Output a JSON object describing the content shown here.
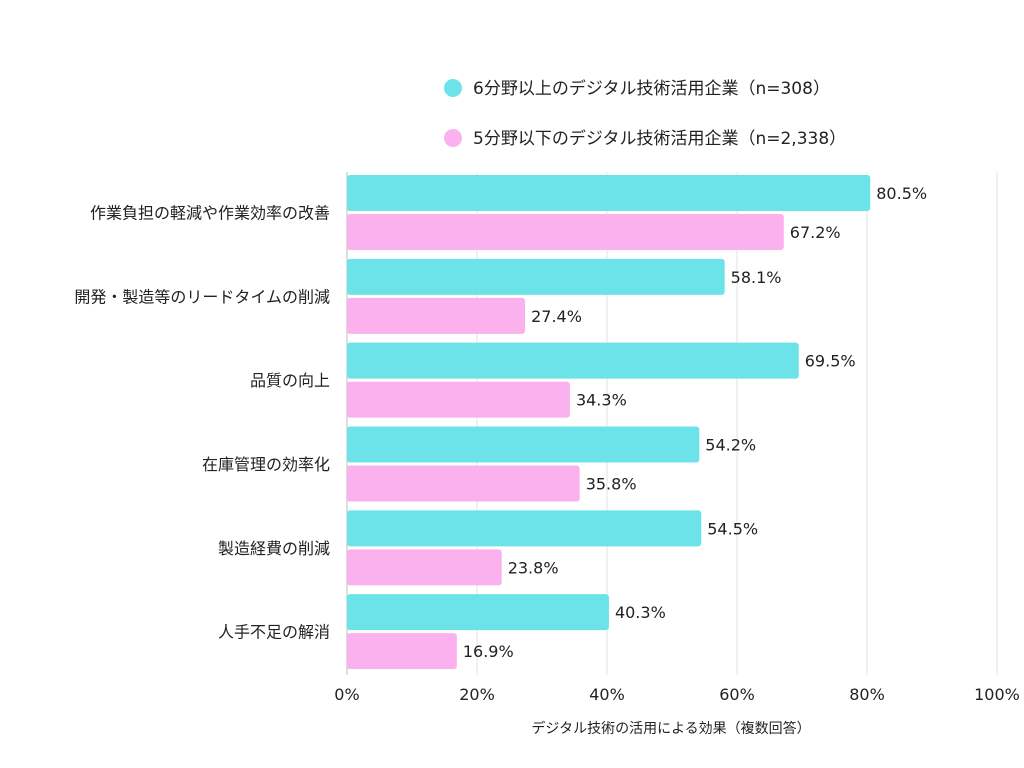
{
  "chart_data": {
    "type": "bar",
    "orientation": "horizontal",
    "categories": [
      "作業負担の軽減や作業効率の改善",
      "開発・製造等のリードタイムの削減",
      "品質の向上",
      "在庫管理の効率化",
      "製造経費の削減",
      "人手不足の解消"
    ],
    "series": [
      {
        "name": "6分野以上のデジタル技術活用企業（n=308）",
        "color": "#6ce3e8",
        "values": [
          80.5,
          58.1,
          69.5,
          54.2,
          54.5,
          40.3
        ],
        "labels": [
          "80.5%",
          "58.1%",
          "69.5%",
          "54.2%",
          "54.5%",
          "40.3%"
        ]
      },
      {
        "name": "5分野以下のデジタル技術活用企業（n=2,338）",
        "color": "#fcb1ef",
        "values": [
          67.2,
          27.4,
          34.3,
          35.8,
          23.8,
          16.9
        ],
        "labels": [
          "67.2%",
          "27.4%",
          "34.3%",
          "35.8%",
          "23.8%",
          "16.9%"
        ]
      }
    ],
    "xlim": [
      0,
      100
    ],
    "xticks": [
      "0%",
      "20%",
      "40%",
      "60%",
      "80%",
      "100%"
    ],
    "xlabel": "デジタル技術の活用による効果（複数回答）",
    "grid": "vertical",
    "legend_position": "top-right"
  }
}
